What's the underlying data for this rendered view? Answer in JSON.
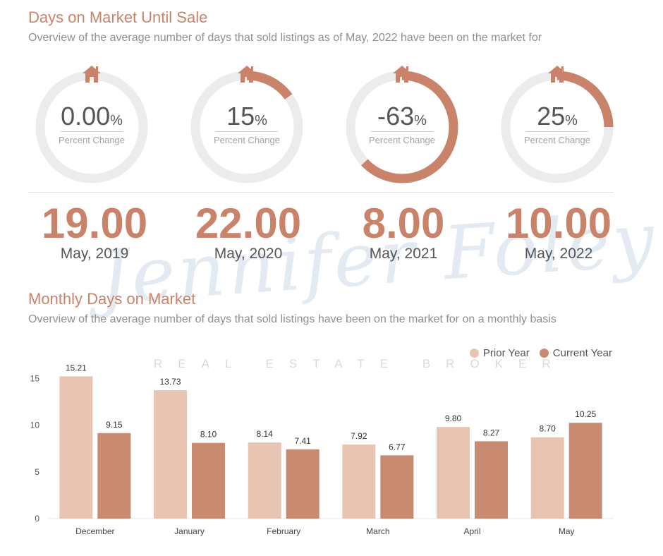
{
  "section1": {
    "title": "Days on Market Until Sale",
    "subtitle": "Overview of the average number of days that sold listings as of May, 2022 have been on the market for"
  },
  "gauges": [
    {
      "value": "0.00",
      "unit": "%",
      "label": "Percent Change",
      "fill": 0.0
    },
    {
      "value": "15",
      "unit": "%",
      "label": "Percent Change",
      "fill": 0.15
    },
    {
      "value": "-63",
      "unit": "%",
      "label": "Percent Change",
      "fill": 0.63
    },
    {
      "value": "25",
      "unit": "%",
      "label": "Percent Change",
      "fill": 0.25
    }
  ],
  "stats": [
    {
      "value": "19.00",
      "period": "May, 2019"
    },
    {
      "value": "22.00",
      "period": "May, 2020"
    },
    {
      "value": "8.00",
      "period": "May, 2021"
    },
    {
      "value": "10.00",
      "period": "May, 2022"
    }
  ],
  "watermark": {
    "name": "Jennifer Foley",
    "tagline": "REAL ESTATE BROKER"
  },
  "section2": {
    "title": "Monthly Days on Market",
    "subtitle": "Overview of the average number of days that sold listings have been on the market for on a monthly basis"
  },
  "colors": {
    "accent": "#c8836a",
    "prior": "#e8c4b3",
    "current": "#c98a72",
    "ring_track": "#ececec"
  },
  "chart_data": {
    "type": "bar",
    "categories": [
      "December",
      "January",
      "February",
      "March",
      "April",
      "May"
    ],
    "series": [
      {
        "name": "Prior Year",
        "values": [
          15.21,
          13.73,
          8.14,
          7.92,
          9.8,
          8.7
        ],
        "labels": [
          "15.21",
          "13.73",
          "8.14",
          "7.92",
          "9.80",
          "8.70"
        ]
      },
      {
        "name": "Current Year",
        "values": [
          9.15,
          8.1,
          7.41,
          6.77,
          8.27,
          10.25
        ],
        "labels": [
          "9.15",
          "8.10",
          "7.41",
          "6.77",
          "8.27",
          "10.25"
        ]
      }
    ],
    "yticks": [
      0,
      5,
      10,
      15
    ],
    "ylim": [
      0,
      15.5
    ],
    "legend_position": "top-right",
    "grid": false
  }
}
